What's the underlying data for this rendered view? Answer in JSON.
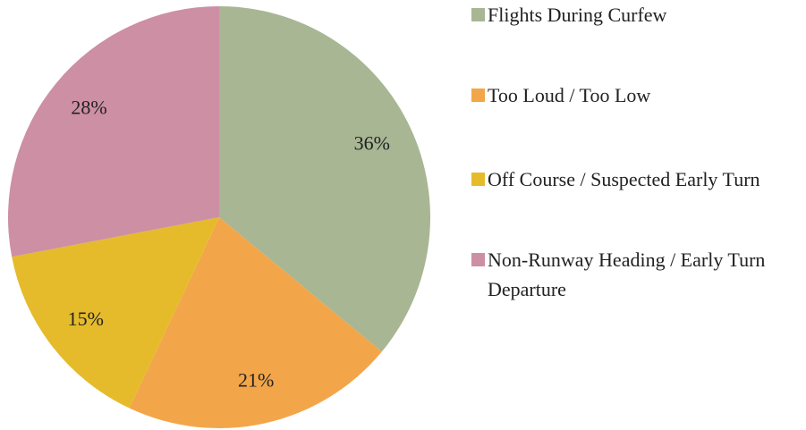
{
  "chart_data": {
    "type": "pie",
    "categories": [
      "Flights During Curfew",
      "Too Loud / Too Low",
      "Off Course / Suspected Early Turn",
      "Non-Runway Heading / Early Turn Departure"
    ],
    "values": [
      36,
      21,
      15,
      28
    ],
    "value_labels": [
      "36%",
      "21%",
      "15%",
      "28%"
    ],
    "colors": [
      "#a8b693",
      "#f2a649",
      "#e5bb2b",
      "#cd8fa4"
    ],
    "legend": "right"
  }
}
